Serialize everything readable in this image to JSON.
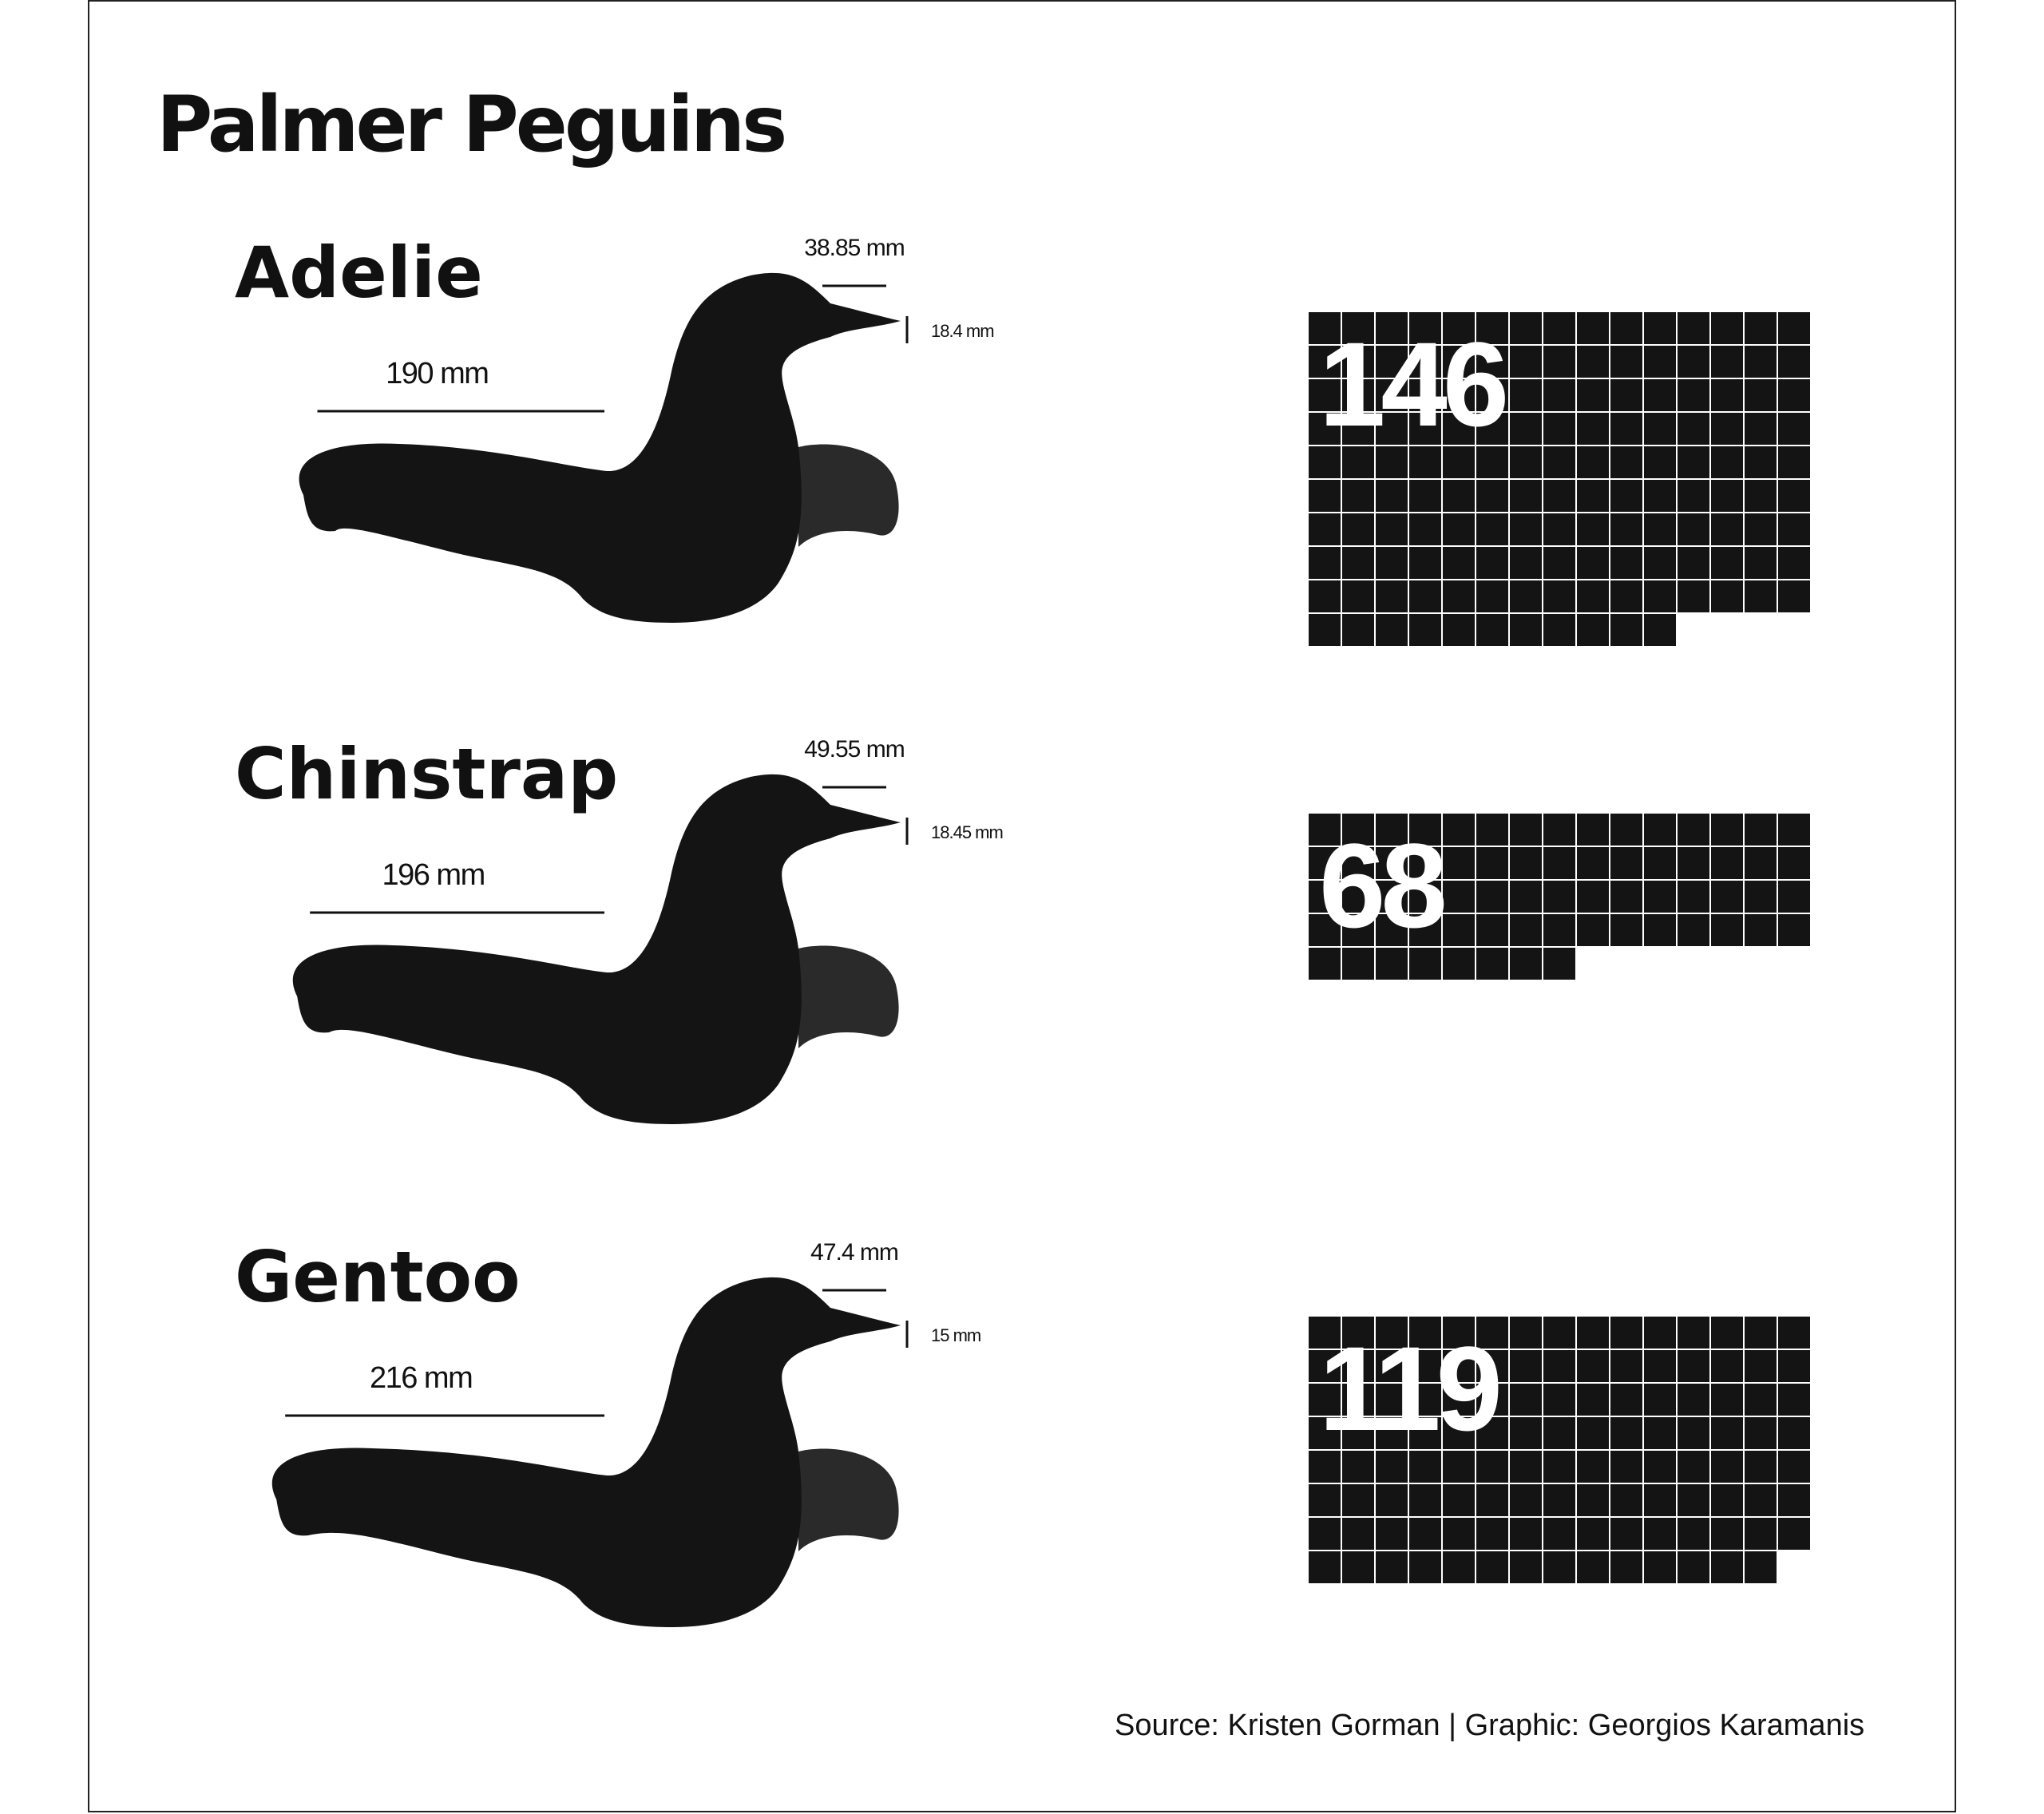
{
  "title": "Palmer Peguins",
  "source": "Source: Kristen Gorman | Graphic: Georgios Karamanis",
  "colors": {
    "background": "#ffffff",
    "body": "#141414",
    "flipper": "#2a2a2a",
    "grid_line": "#ffffff",
    "text": "#111111"
  },
  "chart_data": {
    "type": "waffle",
    "waffle_columns": 15,
    "species": [
      {
        "name": "Adelie",
        "count": 146,
        "count_label": "146",
        "flipper_length_mm": 190,
        "flipper_label": "190 mm",
        "culmen_length_mm": 38.85,
        "culmen_length_label": "38.85 mm",
        "culmen_depth_mm": 18.4,
        "culmen_depth_label": "18.4 mm"
      },
      {
        "name": "Chinstrap",
        "count": 68,
        "count_label": "68",
        "flipper_length_mm": 196,
        "flipper_label": "196 mm",
        "culmen_length_mm": 49.55,
        "culmen_length_label": "49.55 mm",
        "culmen_depth_mm": 18.45,
        "culmen_depth_label": "18.45 mm"
      },
      {
        "name": "Gentoo",
        "count": 119,
        "count_label": "119",
        "flipper_length_mm": 216,
        "flipper_label": "216 mm",
        "culmen_length_mm": 47.4,
        "culmen_length_label": "47.4 mm",
        "culmen_depth_mm": 15,
        "culmen_depth_label": "15 mm"
      }
    ]
  }
}
